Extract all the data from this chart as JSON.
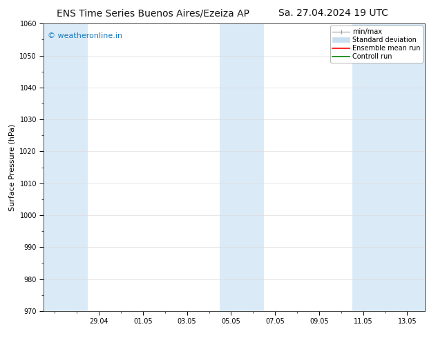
{
  "title_left": "ENS Time Series Buenos Aires/Ezeiza AP",
  "title_right": "Sa. 27.04.2024 19 UTC",
  "ylabel": "Surface Pressure (hPa)",
  "ylim": [
    970,
    1060
  ],
  "yticks": [
    970,
    980,
    990,
    1000,
    1010,
    1020,
    1030,
    1040,
    1050,
    1060
  ],
  "xtick_labels": [
    "29.04",
    "01.05",
    "03.05",
    "05.05",
    "07.05",
    "09.05",
    "11.05",
    "13.05"
  ],
  "xtick_positions": [
    2,
    4,
    6,
    8,
    10,
    12,
    14,
    16
  ],
  "xlim": [
    -0.5,
    16.8
  ],
  "shaded_bands": [
    {
      "x_start": -0.5,
      "x_end": 1.5,
      "color": "#daeaf6"
    },
    {
      "x_start": 7.5,
      "x_end": 9.5,
      "color": "#daeaf6"
    },
    {
      "x_start": 13.5,
      "x_end": 16.8,
      "color": "#daeaf6"
    }
  ],
  "watermark_text": "© weatheronline.in",
  "watermark_color": "#1a7abf",
  "background_color": "#ffffff",
  "plot_bg_color": "#ffffff",
  "legend_items": [
    {
      "label": "min/max",
      "color": "#aaaaaa",
      "type": "errorbar"
    },
    {
      "label": "Standard deviation",
      "color": "#c8dff0",
      "type": "band"
    },
    {
      "label": "Ensemble mean run",
      "color": "#ff0000",
      "type": "line"
    },
    {
      "label": "Controll run",
      "color": "#008000",
      "type": "line"
    }
  ],
  "title_fontsize": 10,
  "axis_label_fontsize": 8,
  "tick_fontsize": 7,
  "legend_fontsize": 7,
  "watermark_fontsize": 8
}
